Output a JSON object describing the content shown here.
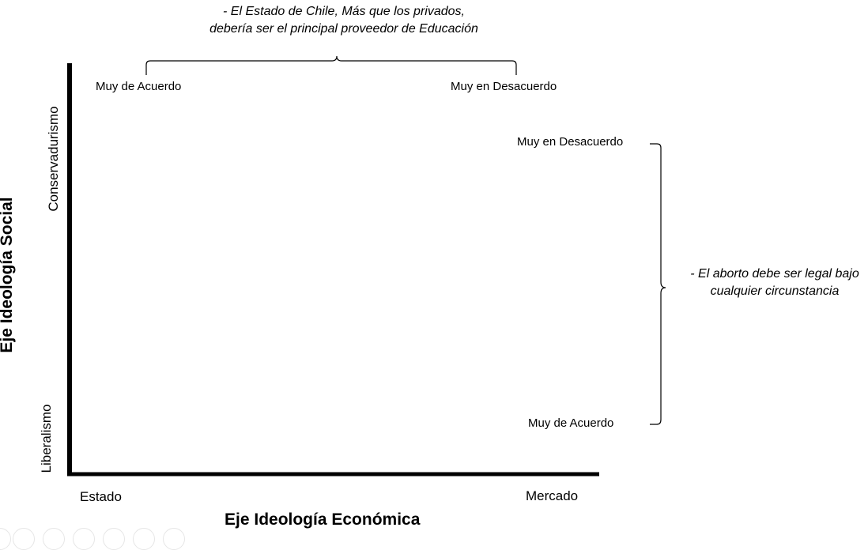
{
  "top_question": {
    "line1": "- El Estado de Chile, Más que los privados,",
    "line2": "debería ser el principal proveedor de Educación",
    "left_end": "Muy de Acuerdo",
    "right_end": "Muy en Desacuerdo"
  },
  "right_question": {
    "line1": "- El aborto debe ser legal bajo",
    "line2": "cualquier circunstancia",
    "top_end": "Muy en Desacuerdo",
    "bottom_end": "Muy de Acuerdo"
  },
  "y_axis": {
    "title": "Eje Ideología Social",
    "top_label": "Conservadurismo",
    "bottom_label": "Liberalismo"
  },
  "x_axis": {
    "title": "Eje Ideología Económica",
    "left_label": "Estado",
    "right_label": "Mercado"
  },
  "footer_icons": [
    "circle-icon",
    "circle-icon",
    "facebook-icon",
    "twitter-icon",
    "pinterest-icon",
    "email-icon",
    "share-icon"
  ]
}
